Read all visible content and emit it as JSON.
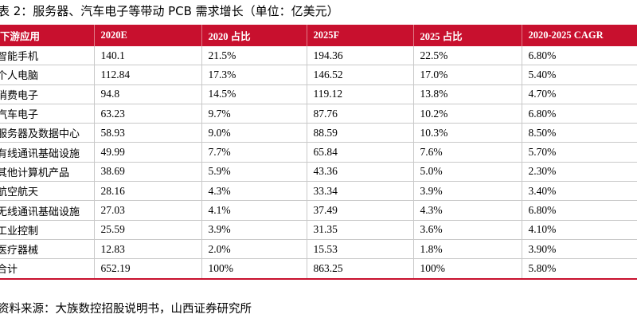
{
  "title": "表 2：服务器、汽车电子等带动 PCB 需求增长（单位：亿美元）",
  "table": {
    "headers": [
      "下游应用",
      "2020E",
      "2020 占比",
      "2025F",
      "2025 占比",
      "2020-2025 CAGR"
    ],
    "rows": [
      [
        "智能手机",
        "140.1",
        "21.5%",
        "194.36",
        "22.5%",
        "6.80%"
      ],
      [
        "个人电脑",
        "112.84",
        "17.3%",
        "146.52",
        "17.0%",
        "5.40%"
      ],
      [
        "消费电子",
        "94.8",
        "14.5%",
        "119.12",
        "13.8%",
        "4.70%"
      ],
      [
        "汽车电子",
        "63.23",
        "9.7%",
        "87.76",
        "10.2%",
        "6.80%"
      ],
      [
        "服务器及数据中心",
        "58.93",
        "9.0%",
        "88.59",
        "10.3%",
        "8.50%"
      ],
      [
        "有线通讯基础设施",
        "49.99",
        "7.7%",
        "65.84",
        "7.6%",
        "5.70%"
      ],
      [
        "其他计算机产品",
        "38.69",
        "5.9%",
        "43.36",
        "5.0%",
        "2.30%"
      ],
      [
        "航空航天",
        "28.16",
        "4.3%",
        "33.34",
        "3.9%",
        "3.40%"
      ],
      [
        "无线通讯基础设施",
        "27.03",
        "4.1%",
        "37.49",
        "4.3%",
        "6.80%"
      ],
      [
        "工业控制",
        "25.59",
        "3.9%",
        "31.35",
        "3.6%",
        "4.10%"
      ],
      [
        "医疗器械",
        "12.83",
        "2.0%",
        "15.53",
        "1.8%",
        "3.90%"
      ],
      [
        "合计",
        "652.19",
        "100%",
        "863.25",
        "100%",
        "5.80%"
      ]
    ]
  },
  "source": "资料来源：大族数控招股说明书，山西证券研究所",
  "colors": {
    "header_bg": "#c8102e",
    "header_text": "#ffffff"
  }
}
